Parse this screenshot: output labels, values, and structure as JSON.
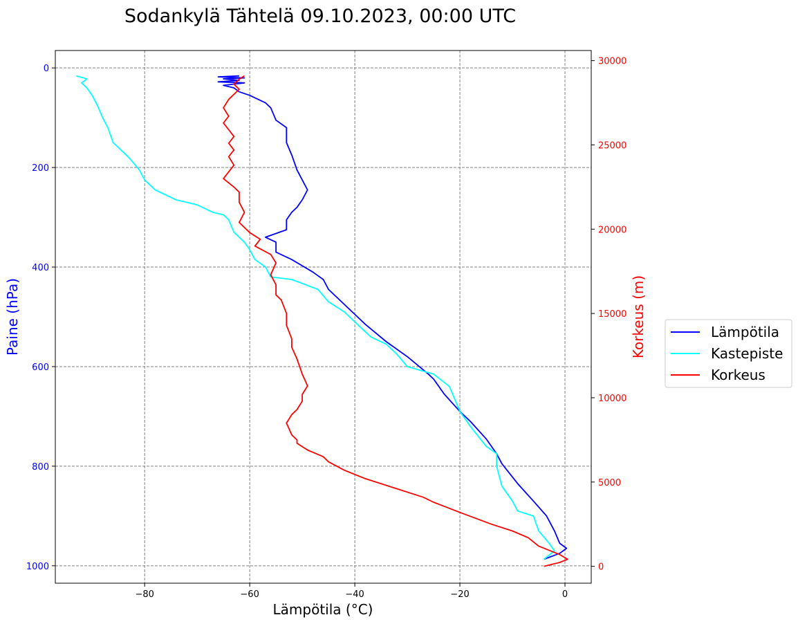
{
  "chart_data": {
    "type": "line",
    "title": "Sodankylä Tähtelä 09.10.2023, 00:00 UTC",
    "xlabel": "Lämpötila (°C)",
    "ylabel": "Paine (hPa)",
    "y2label": "Korkeus (m)",
    "xlim": [
      -97,
      5
    ],
    "ylim": [
      1035,
      -35
    ],
    "y2lim": [
      -1000,
      30600
    ],
    "x_ticks": [
      -80,
      -60,
      -40,
      -20,
      0
    ],
    "x_tick_labels": [
      "−80",
      "−60",
      "−40",
      "−20",
      "0"
    ],
    "y_ticks": [
      0,
      200,
      400,
      600,
      800,
      1000
    ],
    "y_tick_labels": [
      "0",
      "200",
      "400",
      "600",
      "800",
      "1000"
    ],
    "y2_ticks": [
      0,
      5000,
      10000,
      15000,
      20000,
      25000,
      30000
    ],
    "y2_tick_labels": [
      "0",
      "5000",
      "10000",
      "15000",
      "20000",
      "25000",
      "30000"
    ],
    "grid": true,
    "legend_position": "right-outside",
    "colors": {
      "left_axis": "#0000ff",
      "right_axis": "#ff0000",
      "grid": "#808080"
    },
    "series": [
      {
        "name": "Lämpötila",
        "color": "#0000ff",
        "axis": "y",
        "points": [
          [
            -4,
            987
          ],
          [
            -1,
            975
          ],
          [
            0.3,
            965
          ],
          [
            -1,
            955
          ],
          [
            -2,
            930
          ],
          [
            -3.5,
            900
          ],
          [
            -6,
            870
          ],
          [
            -9,
            835
          ],
          [
            -12,
            795
          ],
          [
            -13,
            775
          ],
          [
            -15,
            745
          ],
          [
            -18,
            710
          ],
          [
            -20,
            690
          ],
          [
            -23,
            655
          ],
          [
            -25,
            625
          ],
          [
            -26,
            615
          ],
          [
            -30,
            580
          ],
          [
            -34,
            550
          ],
          [
            -38,
            515
          ],
          [
            -42,
            475
          ],
          [
            -45,
            445
          ],
          [
            -46,
            425
          ],
          [
            -48,
            410
          ],
          [
            -52,
            385
          ],
          [
            -55,
            370
          ],
          [
            -55,
            350
          ],
          [
            -57,
            340
          ],
          [
            -53,
            325
          ],
          [
            -53,
            305
          ],
          [
            -52,
            290
          ],
          [
            -51,
            280
          ],
          [
            -50,
            265
          ],
          [
            -49,
            245
          ],
          [
            -50,
            225
          ],
          [
            -51,
            205
          ],
          [
            -52,
            175
          ],
          [
            -53,
            150
          ],
          [
            -53,
            120
          ],
          [
            -55,
            105
          ],
          [
            -56,
            80
          ],
          [
            -57,
            70
          ],
          [
            -60,
            55
          ],
          [
            -62,
            48
          ],
          [
            -63,
            40
          ],
          [
            -65,
            35
          ],
          [
            -61,
            30
          ],
          [
            -66,
            28
          ],
          [
            -62,
            25
          ],
          [
            -65,
            22
          ],
          [
            -61,
            20
          ],
          [
            -66,
            18
          ],
          [
            -62,
            16
          ]
        ]
      },
      {
        "name": "Kastepiste",
        "color": "#00ffff",
        "axis": "y",
        "points": [
          [
            -4,
            987
          ],
          [
            -2,
            970
          ],
          [
            -3,
            955
          ],
          [
            -5,
            930
          ],
          [
            -6,
            900
          ],
          [
            -9,
            890
          ],
          [
            -10,
            870
          ],
          [
            -12,
            840
          ],
          [
            -13,
            800
          ],
          [
            -13,
            775
          ],
          [
            -15,
            760
          ],
          [
            -18,
            720
          ],
          [
            -20,
            690
          ],
          [
            -21,
            665
          ],
          [
            -22,
            640
          ],
          [
            -25,
            615
          ],
          [
            -30,
            600
          ],
          [
            -32,
            575
          ],
          [
            -34,
            555
          ],
          [
            -37,
            540
          ],
          [
            -40,
            510
          ],
          [
            -42,
            490
          ],
          [
            -45,
            470
          ],
          [
            -47,
            445
          ],
          [
            -52,
            425
          ],
          [
            -56,
            420
          ],
          [
            -57,
            400
          ],
          [
            -59,
            385
          ],
          [
            -60,
            365
          ],
          [
            -61,
            350
          ],
          [
            -63,
            330
          ],
          [
            -64,
            305
          ],
          [
            -65,
            295
          ],
          [
            -67,
            290
          ],
          [
            -70,
            275
          ],
          [
            -74,
            265
          ],
          [
            -78,
            245
          ],
          [
            -80,
            225
          ],
          [
            -81,
            205
          ],
          [
            -83,
            180
          ],
          [
            -86,
            150
          ],
          [
            -87,
            120
          ],
          [
            -88,
            100
          ],
          [
            -89,
            75
          ],
          [
            -90,
            55
          ],
          [
            -91,
            40
          ],
          [
            -92,
            30
          ],
          [
            -91,
            22
          ],
          [
            -93,
            16
          ]
        ]
      },
      {
        "name": "Korkeus",
        "color": "#ff0000",
        "axis": "y2",
        "points": [
          [
            -4,
            0
          ],
          [
            -1,
            230
          ],
          [
            0.5,
            420
          ],
          [
            -1,
            700
          ],
          [
            -5,
            1200
          ],
          [
            -7,
            1700
          ],
          [
            -10,
            2100
          ],
          [
            -14,
            2500
          ],
          [
            -20,
            3200
          ],
          [
            -25,
            3800
          ],
          [
            -27,
            4100
          ],
          [
            -32,
            4600
          ],
          [
            -38,
            5200
          ],
          [
            -42,
            5700
          ],
          [
            -45,
            6200
          ],
          [
            -46,
            6500
          ],
          [
            -49,
            6900
          ],
          [
            -51,
            7300
          ],
          [
            -51,
            7500
          ],
          [
            -52,
            7800
          ],
          [
            -53,
            8500
          ],
          [
            -52,
            9000
          ],
          [
            -51,
            9300
          ],
          [
            -50,
            9800
          ],
          [
            -50,
            10200
          ],
          [
            -49,
            10700
          ],
          [
            -50,
            11400
          ],
          [
            -51,
            12300
          ],
          [
            -52,
            13000
          ],
          [
            -52,
            13500
          ],
          [
            -53,
            14300
          ],
          [
            -53,
            15000
          ],
          [
            -54,
            15800
          ],
          [
            -55,
            16100
          ],
          [
            -55,
            16700
          ],
          [
            -56,
            17300
          ],
          [
            -55,
            18000
          ],
          [
            -56,
            18500
          ],
          [
            -59,
            19000
          ],
          [
            -58,
            19400
          ],
          [
            -60,
            19800
          ],
          [
            -61,
            20100
          ],
          [
            -62,
            20400
          ],
          [
            -61,
            21000
          ],
          [
            -62,
            21600
          ],
          [
            -62,
            22200
          ],
          [
            -63,
            22500
          ],
          [
            -65,
            23000
          ],
          [
            -64,
            23400
          ],
          [
            -63,
            23800
          ],
          [
            -64,
            24300
          ],
          [
            -63,
            24700
          ],
          [
            -64,
            25100
          ],
          [
            -63,
            25500
          ],
          [
            -64,
            25900
          ],
          [
            -65,
            26300
          ],
          [
            -64,
            26700
          ],
          [
            -65,
            27200
          ],
          [
            -64,
            27700
          ],
          [
            -63,
            28000
          ],
          [
            -62,
            28300
          ],
          [
            -63,
            28600
          ],
          [
            -62,
            28900
          ],
          [
            -61,
            29100
          ]
        ]
      }
    ]
  }
}
